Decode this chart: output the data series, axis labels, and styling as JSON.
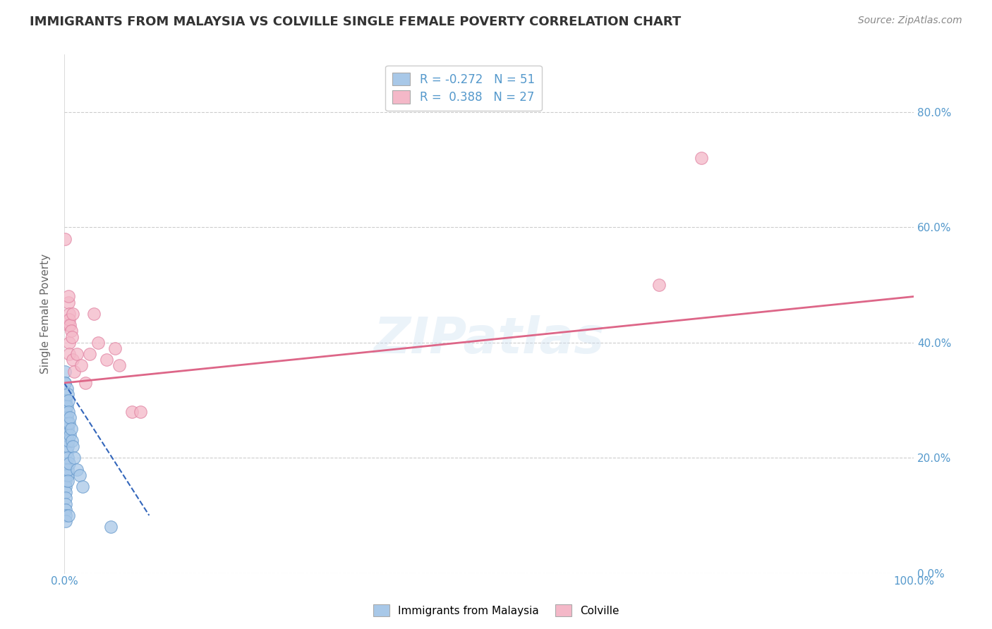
{
  "title": "IMMIGRANTS FROM MALAYSIA VS COLVILLE SINGLE FEMALE POVERTY CORRELATION CHART",
  "source": "Source: ZipAtlas.com",
  "ylabel": "Single Female Poverty",
  "legend_label1": "Immigrants from Malaysia",
  "legend_label2": "Colville",
  "r1": -0.272,
  "n1": 51,
  "r2": 0.388,
  "n2": 27,
  "blue_scatter": [
    [
      0.1,
      33
    ],
    [
      0.1,
      35
    ],
    [
      0.1,
      28
    ],
    [
      0.1,
      30
    ],
    [
      0.1,
      27
    ],
    [
      0.1,
      25
    ],
    [
      0.1,
      23
    ],
    [
      0.1,
      33
    ],
    [
      0.2,
      30
    ],
    [
      0.2,
      29
    ],
    [
      0.2,
      19
    ],
    [
      0.2,
      17
    ],
    [
      0.2,
      16
    ],
    [
      0.2,
      15
    ],
    [
      0.2,
      14
    ],
    [
      0.2,
      13
    ],
    [
      0.2,
      12
    ],
    [
      0.2,
      11
    ],
    [
      0.2,
      10
    ],
    [
      0.2,
      9
    ],
    [
      0.2,
      28
    ],
    [
      0.3,
      32
    ],
    [
      0.3,
      29
    ],
    [
      0.3,
      26
    ],
    [
      0.3,
      24
    ],
    [
      0.3,
      21
    ],
    [
      0.3,
      27
    ],
    [
      0.4,
      31
    ],
    [
      0.4,
      17
    ],
    [
      0.4,
      25
    ],
    [
      0.4,
      22
    ],
    [
      0.4,
      20
    ],
    [
      0.4,
      18
    ],
    [
      0.4,
      16
    ],
    [
      0.4,
      26
    ],
    [
      0.5,
      30
    ],
    [
      0.5,
      28
    ],
    [
      0.5,
      23
    ],
    [
      0.5,
      10
    ],
    [
      0.6,
      26
    ],
    [
      0.6,
      19
    ],
    [
      0.7,
      27
    ],
    [
      0.7,
      24
    ],
    [
      0.8,
      25
    ],
    [
      0.9,
      23
    ],
    [
      1.0,
      22
    ],
    [
      1.2,
      20
    ],
    [
      1.5,
      18
    ],
    [
      1.8,
      17
    ],
    [
      2.2,
      15
    ],
    [
      5.5,
      8
    ]
  ],
  "pink_scatter": [
    [
      0.1,
      58
    ],
    [
      0.5,
      47
    ],
    [
      0.5,
      43
    ],
    [
      0.5,
      48
    ],
    [
      0.6,
      45
    ],
    [
      0.6,
      44
    ],
    [
      0.6,
      40
    ],
    [
      0.6,
      38
    ],
    [
      0.7,
      43
    ],
    [
      0.8,
      42
    ],
    [
      0.9,
      41
    ],
    [
      1.0,
      45
    ],
    [
      1.0,
      37
    ],
    [
      1.2,
      35
    ],
    [
      1.5,
      38
    ],
    [
      2.0,
      36
    ],
    [
      2.5,
      33
    ],
    [
      3.0,
      38
    ],
    [
      3.5,
      45
    ],
    [
      4.0,
      40
    ],
    [
      5.0,
      37
    ],
    [
      6.0,
      39
    ],
    [
      6.5,
      36
    ],
    [
      8.0,
      28
    ],
    [
      9.0,
      28
    ],
    [
      70.0,
      50
    ],
    [
      75.0,
      72
    ]
  ],
  "blue_line_x": [
    0.0,
    10.0
  ],
  "blue_line_y": [
    33.0,
    10.0
  ],
  "pink_line_x": [
    0.0,
    100.0
  ],
  "pink_line_y": [
    33.0,
    48.0
  ],
  "xlim": [
    0.0,
    100.0
  ],
  "ylim": [
    0.0,
    90.0
  ],
  "ytick_vals": [
    0,
    20,
    40,
    60,
    80
  ],
  "ytick_labels_right": [
    "0.0%",
    "20.0%",
    "40.0%",
    "60.0%",
    "80.0%"
  ],
  "xtick_vals": [
    0.0,
    100.0
  ],
  "xtick_labels": [
    "0.0%",
    "100.0%"
  ],
  "blue_color": "#a8c8e8",
  "blue_edge_color": "#6699cc",
  "pink_color": "#f4b8c8",
  "pink_edge_color": "#e080a0",
  "blue_line_color": "#3366bb",
  "pink_line_color": "#dd6688",
  "watermark": "ZIPatlas",
  "background_color": "#ffffff",
  "grid_color": "#cccccc",
  "title_color": "#333333",
  "source_color": "#888888",
  "axis_label_color": "#5599cc"
}
